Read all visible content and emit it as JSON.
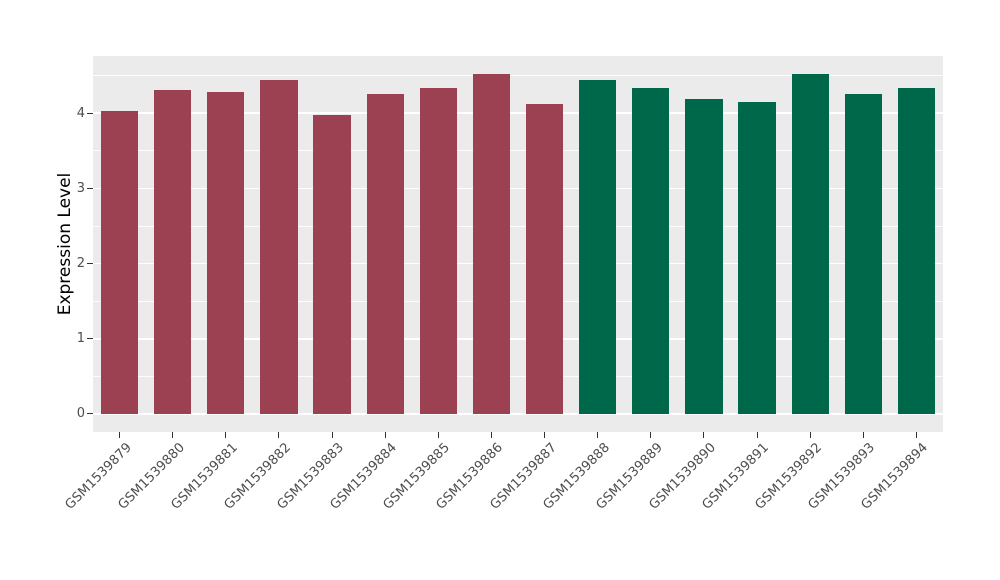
{
  "figure": {
    "background": "#FFFFFF",
    "panel_background": "#EBEBEB",
    "grid_color": "#FFFFFF",
    "axis_text_color": "#4D4D4D",
    "tick_mark_color": "#333333"
  },
  "chart_data": {
    "type": "bar",
    "title": "",
    "xlabel": "",
    "ylabel": "Expression Level",
    "ylim": [
      0,
      4.76
    ],
    "y_ticks": [
      0,
      1,
      2,
      3,
      4
    ],
    "y_minor_ticks": [
      0.5,
      1.5,
      2.5,
      3.5,
      4.5
    ],
    "grid": true,
    "legend_position": "none",
    "x_label_angle_deg": 45,
    "bar_color_group1": "#9C4151",
    "bar_color_group2": "#00684A",
    "categories": [
      "GSM1539879",
      "GSM1539880",
      "GSM1539881",
      "GSM1539882",
      "GSM1539883",
      "GSM1539884",
      "GSM1539885",
      "GSM1539886",
      "GSM1539887",
      "GSM1539888",
      "GSM1539889",
      "GSM1539890",
      "GSM1539891",
      "GSM1539892",
      "GSM1539893",
      "GSM1539894"
    ],
    "values": [
      4.03,
      4.31,
      4.28,
      4.44,
      3.97,
      4.26,
      4.34,
      4.52,
      4.12,
      4.44,
      4.34,
      4.19,
      4.15,
      4.52,
      4.25,
      4.34
    ],
    "bar_colors": [
      "#9C4151",
      "#9C4151",
      "#9C4151",
      "#9C4151",
      "#9C4151",
      "#9C4151",
      "#9C4151",
      "#9C4151",
      "#9C4151",
      "#00684A",
      "#00684A",
      "#00684A",
      "#00684A",
      "#00684A",
      "#00684A",
      "#00684A"
    ]
  }
}
